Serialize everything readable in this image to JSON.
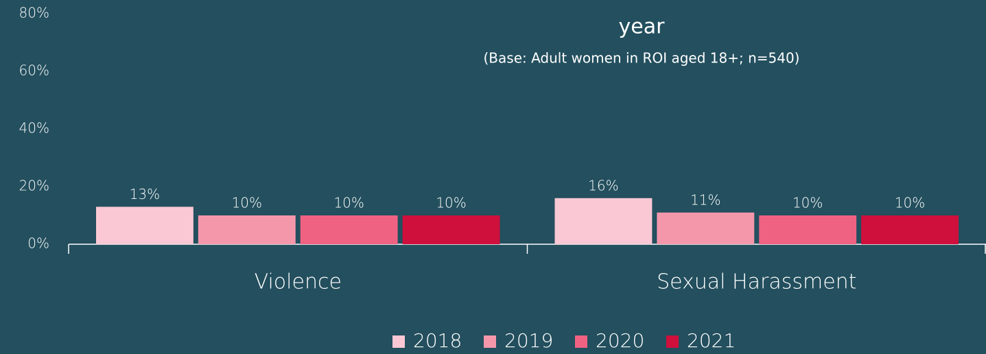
{
  "chart_data": {
    "type": "bar",
    "title": "year",
    "subtitle": "(Base: Adult women in ROI aged 18+; n=540)",
    "categories": [
      "Violence",
      "Sexual Harassment"
    ],
    "series": [
      {
        "name": "2018",
        "color": "#fac8d4",
        "values": [
          13,
          16
        ],
        "value_labels": [
          "13%",
          "16%"
        ]
      },
      {
        "name": "2019",
        "color": "#f597ab",
        "values": [
          10,
          11
        ],
        "value_labels": [
          "10%",
          "11%"
        ]
      },
      {
        "name": "2020",
        "color": "#f06282",
        "values": [
          10,
          10
        ],
        "value_labels": [
          "10%",
          "10%"
        ]
      },
      {
        "name": "2021",
        "color": "#cf0f3c",
        "values": [
          10,
          10
        ],
        "value_labels": [
          "10%",
          "10%"
        ]
      }
    ],
    "ylim": [
      0,
      80
    ],
    "yticks": [
      {
        "value": 0,
        "label": "0%"
      },
      {
        "value": 20,
        "label": "20%"
      },
      {
        "value": 40,
        "label": "40%"
      },
      {
        "value": 60,
        "label": "60%"
      },
      {
        "value": 80,
        "label": "80%"
      }
    ],
    "grid": false,
    "legend": "bottom"
  }
}
